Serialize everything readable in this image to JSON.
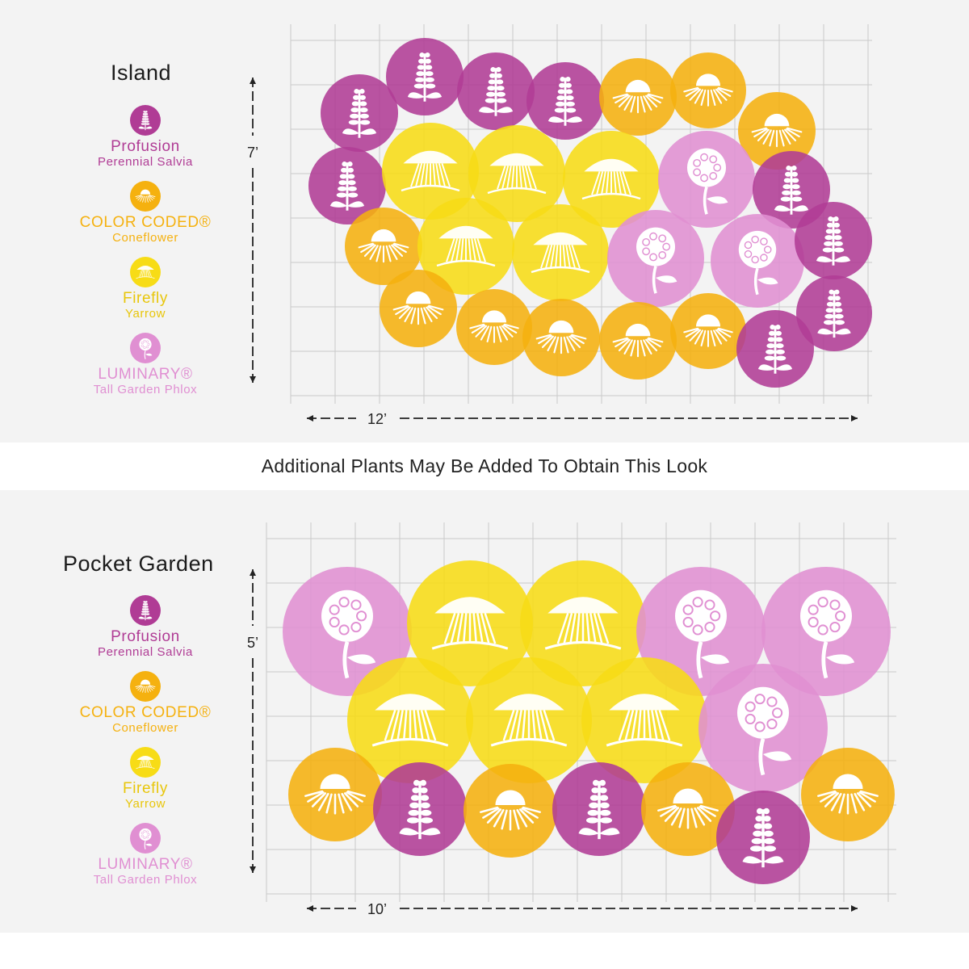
{
  "colors": {
    "salvia": "#b03c95",
    "coneflower": "#f5b10f",
    "yarrow": "#f7dc16",
    "phlox": "#e08fd2",
    "grid": "#c9c9c9",
    "text_dark": "#1b1b1b"
  },
  "banner": "Additional Plants May Be Added To Obtain This Look",
  "layouts": [
    {
      "title": "Island",
      "width_label": "12’",
      "height_label": "7’",
      "legend": [
        {
          "name": "Profusion",
          "sub": "Perennial Salvia",
          "type": "salvia",
          "icon": "salvia-icon"
        },
        {
          "name": "COLOR CODED®",
          "sub": "Coneflower",
          "type": "coneflower",
          "icon": "coneflower-icon"
        },
        {
          "name": "Firefly",
          "sub": "Yarrow",
          "type": "yarrow",
          "icon": "yarrow-icon"
        },
        {
          "name": "LUMINARY®",
          "sub": "Tall Garden Phlox",
          "type": "phlox",
          "icon": "phlox-icon"
        }
      ]
    },
    {
      "title": "Pocket Garden",
      "width_label": "10’",
      "height_label": "5’",
      "legend": [
        {
          "name": "Profusion",
          "sub": "Perennial Salvia",
          "type": "salvia",
          "icon": "salvia-icon"
        },
        {
          "name": "COLOR CODED®",
          "sub": "Coneflower",
          "type": "coneflower",
          "icon": "coneflower-icon"
        },
        {
          "name": "Firefly",
          "sub": "Yarrow",
          "type": "yarrow",
          "icon": "yarrow-icon"
        },
        {
          "name": "LUMINARY®",
          "sub": "Tall Garden Phlox",
          "type": "phlox",
          "icon": "phlox-icon"
        }
      ]
    }
  ]
}
